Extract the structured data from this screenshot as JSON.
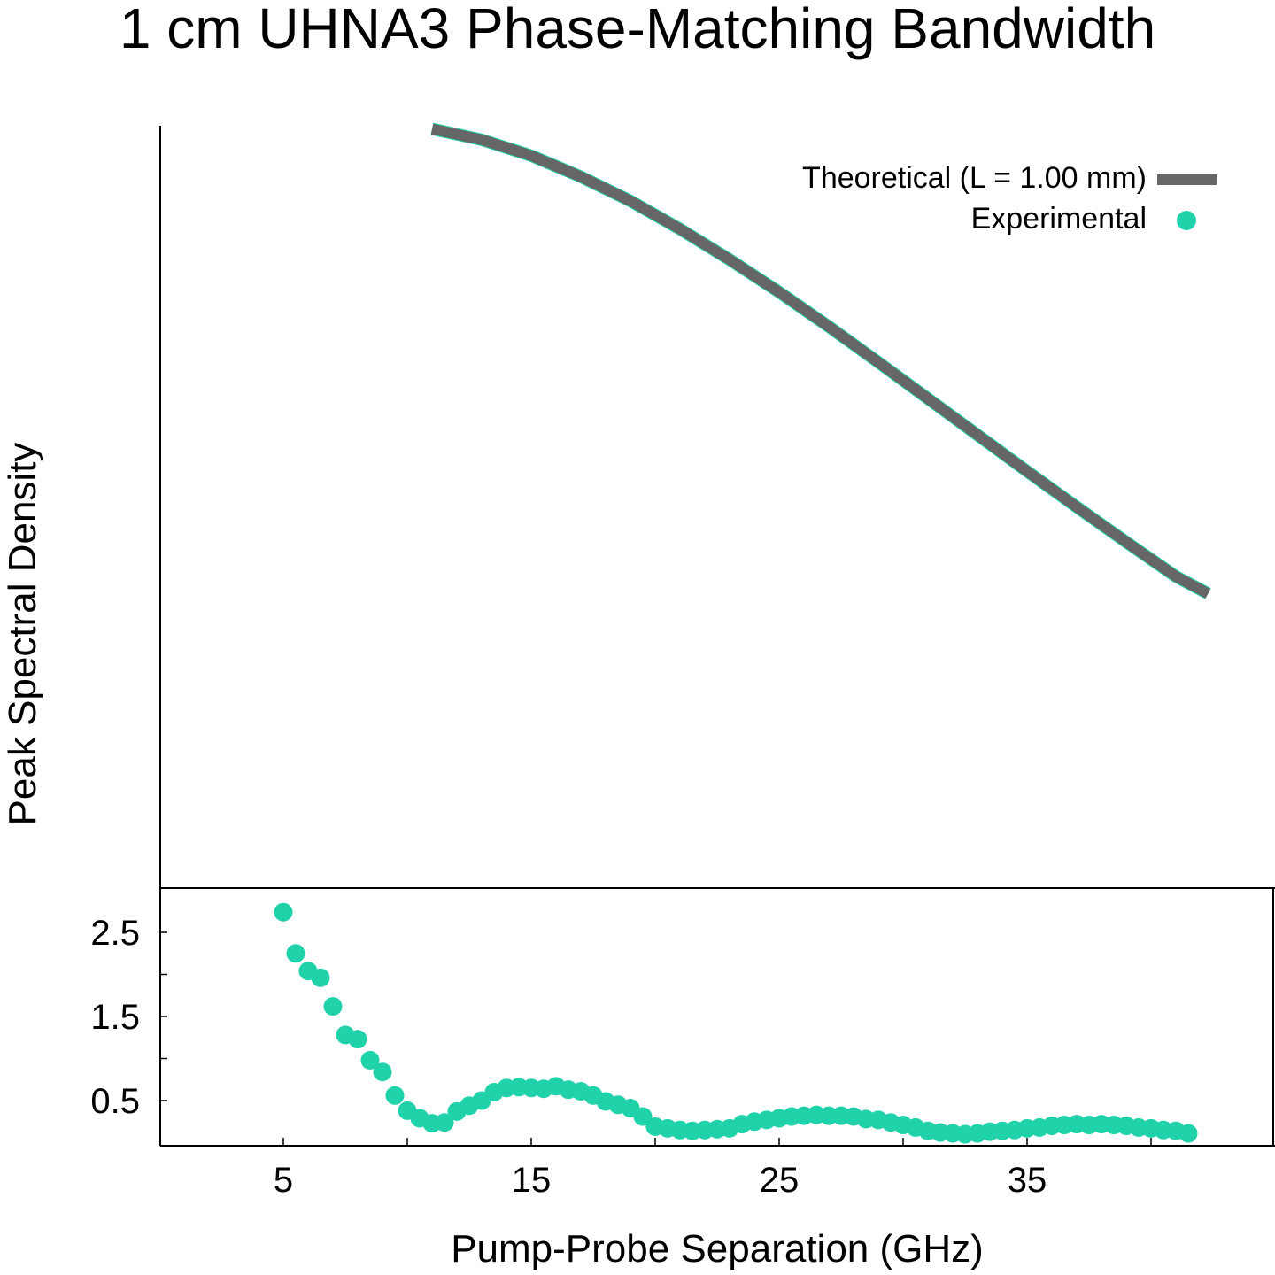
{
  "chart_data": {
    "type": "line",
    "title": "1 cm UHNA3 Phase-Matching Bandwidth",
    "xlabel": "Pump-Probe Separation (GHz)",
    "ylabel": "Peak Spectral Density",
    "xlim": [
      5,
      42
    ],
    "ylim_lower_panel": [
      0,
      3.0
    ],
    "x_ticks": [
      "5",
      "15",
      "25",
      "35"
    ],
    "y_ticks": [
      "2.5",
      "1.5",
      "0.5"
    ],
    "legend_position": "top-right",
    "grid": false,
    "series": [
      {
        "name": "Theoretical (L = 1.00 mm)",
        "style": "line",
        "color": "#666666",
        "x": [
          11,
          13,
          15,
          17,
          19,
          21,
          23,
          25,
          27,
          29,
          31,
          33,
          35,
          37,
          39,
          41,
          42.3
        ],
        "y": [
          11.95,
          11.78,
          11.53,
          11.2,
          10.82,
          10.38,
          9.9,
          9.39,
          8.85,
          8.29,
          7.72,
          7.15,
          6.58,
          6.02,
          5.47,
          4.93,
          4.66
        ]
      },
      {
        "name": "Experimental",
        "style": "points",
        "color": "#20d2aa",
        "x": [
          5.0,
          5.5,
          6.0,
          6.5,
          7.0,
          7.5,
          8.0,
          8.5,
          9.0,
          9.5,
          10.0,
          10.5,
          11.0,
          11.5,
          12.0,
          12.5,
          13.0,
          13.5,
          14.0,
          14.5,
          15.0,
          15.5,
          16.0,
          16.5,
          17.0,
          17.5,
          18.0,
          18.5,
          19.0,
          19.5,
          20.0,
          20.5,
          21.0,
          21.5,
          22.0,
          22.5,
          23.0,
          23.5,
          24.0,
          24.5,
          25.0,
          25.5,
          26.0,
          26.5,
          27.0,
          27.5,
          28.0,
          28.5,
          29.0,
          29.5,
          30.0,
          30.5,
          31.0,
          31.5,
          32.0,
          32.5,
          33.0,
          33.5,
          34.0,
          34.5,
          35.0,
          35.5,
          36.0,
          36.5,
          37.0,
          37.5,
          38.0,
          38.5,
          39.0,
          39.5,
          40.0,
          40.5,
          41.0,
          41.5
        ],
        "y": [
          2.74,
          2.25,
          2.04,
          1.96,
          1.62,
          1.28,
          1.23,
          0.98,
          0.84,
          0.56,
          0.38,
          0.29,
          0.23,
          0.24,
          0.37,
          0.44,
          0.5,
          0.6,
          0.65,
          0.66,
          0.65,
          0.64,
          0.67,
          0.63,
          0.61,
          0.56,
          0.49,
          0.45,
          0.41,
          0.31,
          0.19,
          0.17,
          0.15,
          0.14,
          0.15,
          0.16,
          0.17,
          0.22,
          0.25,
          0.27,
          0.29,
          0.31,
          0.32,
          0.33,
          0.32,
          0.32,
          0.31,
          0.28,
          0.27,
          0.24,
          0.21,
          0.18,
          0.14,
          0.12,
          0.11,
          0.1,
          0.11,
          0.13,
          0.14,
          0.15,
          0.17,
          0.18,
          0.2,
          0.21,
          0.22,
          0.21,
          0.22,
          0.21,
          0.2,
          0.18,
          0.17,
          0.15,
          0.14,
          0.11
        ]
      }
    ]
  }
}
